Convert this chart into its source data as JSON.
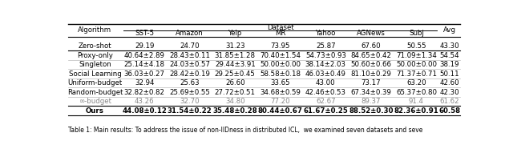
{
  "title": "Dataset",
  "col_header_sub": [
    "SST-5",
    "Amazon",
    "Yelp",
    "MR",
    "Yahoo",
    "AGNews",
    "Subj"
  ],
  "col_avg": "Avg",
  "col_algo": "Algorithm",
  "rows": [
    {
      "algo": "Zero-shot",
      "vals": [
        "29.19",
        "24.70",
        "31.23",
        "73.95",
        "25.87",
        "67.60",
        "50.55"
      ],
      "avg": "43.30",
      "bold": false,
      "gray": false
    },
    {
      "algo": "Proxy-only",
      "vals": [
        "40.64±2.89",
        "28.43±0.11",
        "31.85±1.28",
        "70.40±1.54",
        "54.73±0.93",
        "84.65±0.42",
        "71.09±1.34"
      ],
      "avg": "54.54",
      "bold": false,
      "gray": false
    },
    {
      "algo": "Singleton",
      "vals": [
        "25.14±4.18",
        "24.03±0.57",
        "29.44±3.91",
        "50.00±0.00",
        "38.14±2.03",
        "50.60±0.66",
        "50.00±0.00"
      ],
      "avg": "38.19",
      "bold": false,
      "gray": false
    },
    {
      "algo": "Social Learning",
      "vals": [
        "36.03±0.27",
        "28.42±0.19",
        "29.25±0.45",
        "58.58±0.18",
        "46.03±0.49",
        "81.10±0.29",
        "71.37±0.71"
      ],
      "avg": "50.11",
      "bold": false,
      "gray": false
    },
    {
      "algo": "Uniform-budget",
      "vals": [
        "32.94",
        "25.63",
        "26.60",
        "33.65",
        "43.00",
        "73.17",
        "63.20"
      ],
      "avg": "42.60",
      "bold": false,
      "gray": false
    },
    {
      "algo": "Random-budget",
      "vals": [
        "32.82±0.82",
        "25.69±0.55",
        "27.72±0.51",
        "34.68±0.59",
        "42.46±0.53",
        "67.34±0.39",
        "65.37±0.80"
      ],
      "avg": "42.30",
      "bold": false,
      "gray": false
    },
    {
      "algo": "∞-budget",
      "vals": [
        "43.26",
        "32.70",
        "34.80",
        "77.20",
        "62.67",
        "89.37",
        "91.4"
      ],
      "avg": "61.62",
      "bold": false,
      "gray": true
    },
    {
      "algo": "Ours",
      "vals": [
        "44.08±0.12",
        "31.54±0.22",
        "35.48±0.28",
        "80.44±0.67",
        "61.67±0.25",
        "88.52±0.30",
        "82.36±0.91"
      ],
      "avg": "60.58",
      "bold": true,
      "gray": false
    }
  ],
  "caption": "Table 1: Main results: To address the issue of non-IIDness in distributed ICL,  we examined seven datasets and seve",
  "figsize": [
    6.4,
    1.91
  ],
  "dpi": 100,
  "bg_color": "#ffffff",
  "text_color": "#000000",
  "gray_color": "#888888"
}
